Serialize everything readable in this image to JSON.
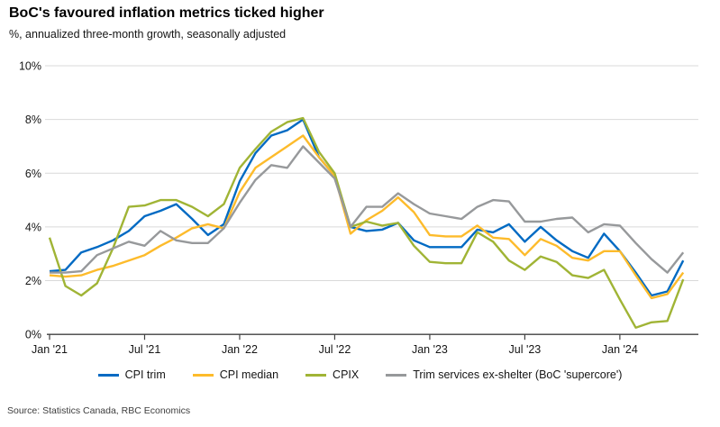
{
  "chart_data": {
    "type": "line",
    "title": "BoC's favoured inflation metrics ticked higher",
    "subtitle": "%, annualized three-month growth, seasonally adjusted",
    "source": "Source: Statistics Canada, RBC Economics",
    "x_start": "Jan 2021",
    "x_end": "May 2024",
    "points_per_series": 41,
    "x_tick_labels": [
      "Jan '21",
      "Jul '21",
      "Jan '22",
      "Jul '22",
      "Jan '23",
      "Jul '23",
      "Jan '24"
    ],
    "x_tick_month_index": [
      0,
      6,
      12,
      18,
      24,
      30,
      36
    ],
    "y_tick_labels": [
      "0%",
      "2%",
      "4%",
      "6%",
      "8%",
      "10%"
    ],
    "ylim": [
      0,
      10
    ],
    "grid": "horizontal",
    "legend_position": "bottom",
    "axis_color": "#404040",
    "grid_color": "#d9d9d9",
    "series": [
      {
        "name": "CPI trim",
        "color": "#006ac3",
        "values": [
          2.35,
          2.4,
          3.05,
          3.25,
          3.5,
          3.85,
          4.4,
          4.6,
          4.85,
          4.3,
          3.7,
          4.1,
          5.7,
          6.75,
          7.4,
          7.6,
          8.0,
          6.6,
          5.9,
          4.0,
          3.85,
          3.9,
          4.15,
          3.5,
          3.25,
          3.25,
          3.25,
          3.9,
          3.8,
          4.1,
          3.45,
          4.0,
          3.5,
          3.1,
          2.85,
          3.75,
          3.1,
          2.3,
          1.45,
          1.6,
          2.75
        ]
      },
      {
        "name": "CPI median",
        "color": "#fdbb2b",
        "values": [
          2.2,
          2.15,
          2.2,
          2.4,
          2.55,
          2.75,
          2.95,
          3.3,
          3.6,
          3.95,
          4.1,
          3.95,
          5.3,
          6.2,
          6.6,
          7.0,
          7.4,
          6.6,
          5.9,
          3.75,
          4.25,
          4.6,
          5.1,
          4.55,
          3.7,
          3.65,
          3.65,
          4.05,
          3.6,
          3.55,
          2.95,
          3.55,
          3.3,
          2.85,
          2.75,
          3.1,
          3.1,
          2.2,
          1.35,
          1.5,
          2.3
        ]
      },
      {
        "name": "CPIX",
        "color": "#a0b435",
        "values": [
          3.6,
          1.8,
          1.45,
          1.9,
          3.2,
          4.75,
          4.8,
          5.0,
          5.0,
          4.75,
          4.4,
          4.85,
          6.2,
          6.9,
          7.55,
          7.9,
          8.05,
          6.8,
          6.0,
          4.0,
          4.2,
          4.05,
          4.15,
          3.3,
          2.7,
          2.65,
          2.65,
          3.8,
          3.45,
          2.75,
          2.4,
          2.9,
          2.7,
          2.2,
          2.1,
          2.4,
          1.3,
          0.25,
          0.45,
          0.5,
          2.05
        ]
      },
      {
        "name": "Trim services ex-shelter (BoC 'supercore')",
        "color": "#97999b",
        "values": [
          2.3,
          2.3,
          2.35,
          2.95,
          3.2,
          3.45,
          3.3,
          3.85,
          3.5,
          3.4,
          3.4,
          3.95,
          4.9,
          5.75,
          6.3,
          6.2,
          7.0,
          6.4,
          5.8,
          4.0,
          4.75,
          4.75,
          5.25,
          4.85,
          4.5,
          4.4,
          4.3,
          4.75,
          5.0,
          4.95,
          4.2,
          4.2,
          4.3,
          4.35,
          3.8,
          4.1,
          4.05,
          3.4,
          2.8,
          2.3,
          3.05
        ]
      }
    ]
  }
}
